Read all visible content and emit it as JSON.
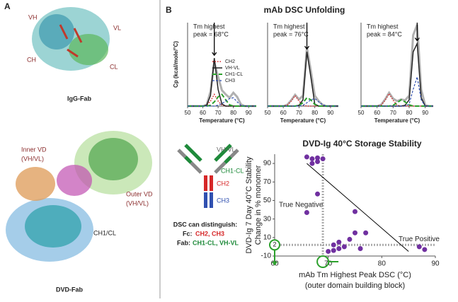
{
  "panel_a": {
    "label": "A",
    "vh": "VH",
    "vl": "VL",
    "ch": "CH",
    "cl": "CL",
    "top_caption": "IgG-Fab",
    "inner_vd": "Inner VD",
    "inner_vd_sub": "(VH/VL)",
    "outer_vd": "Outer VD",
    "outer_vd_sub": "(VH/VL)",
    "constant": "CH1/CL",
    "bottom_caption": "DVD-Fab"
  },
  "panel_b": {
    "label": "B",
    "title": "mAb DSC Unfolding"
  },
  "diagram": {
    "vh_vl": "VH-VL",
    "ch1_cl": "CH1-CL",
    "ch2": "CH2",
    "ch3": "CH3",
    "heading": "DSC can distinguish:",
    "fc": "Fc:",
    "fc_items": "CH2, CH3",
    "fab": "Fab:",
    "fab_items": "CH1-CL, VH-VL"
  },
  "chart_data": [
    {
      "type": "line",
      "ylabel": "Cp (kcal/mole/°C)",
      "xlabel": "Temperature (°C)",
      "annotation": [
        "Tm highest",
        "peak = 68°C"
      ],
      "legend": "right",
      "x": [
        50,
        52.5,
        55,
        57.5,
        60,
        62.5,
        65,
        67.5,
        70,
        72.5,
        75,
        77.5,
        80,
        82.5,
        85,
        87.5,
        90,
        92.5,
        95
      ],
      "xlim": [
        50,
        95
      ],
      "ylim": [
        0,
        200
      ],
      "xticks": [
        50,
        60,
        70,
        80,
        90
      ],
      "series": [
        {
          "color": "#b0b0b0",
          "style": "total",
          "values": [
            0,
            0,
            0,
            0,
            0,
            3,
            35,
            105,
            70,
            38,
            28,
            20,
            32,
            22,
            4,
            0,
            0,
            0,
            0
          ]
        },
        {
          "name": "CH2",
          "color": "#d62728",
          "style": "dotted",
          "values": [
            0,
            0,
            0,
            0,
            0,
            2,
            12,
            28,
            12,
            2,
            0,
            0,
            0,
            0,
            0,
            0,
            0,
            0,
            0
          ]
        },
        {
          "name": "VH-VL",
          "color": "#222222",
          "style": "solid",
          "values": [
            0,
            0,
            0,
            0,
            0,
            2,
            25,
            115,
            40,
            5,
            0,
            0,
            0,
            0,
            0,
            0,
            0,
            0,
            0
          ]
        },
        {
          "name": "CH1-CL",
          "color": "#2ca02c",
          "style": "dashed",
          "values": [
            0,
            0,
            0,
            0,
            0,
            0,
            2,
            10,
            22,
            28,
            15,
            3,
            0,
            0,
            0,
            0,
            0,
            0,
            0
          ]
        },
        {
          "name": "CH3",
          "color": "#3050b0",
          "style": "short",
          "values": [
            0,
            0,
            0,
            0,
            0,
            0,
            0,
            0,
            2,
            6,
            12,
            18,
            20,
            10,
            2,
            0,
            0,
            0,
            0
          ]
        }
      ]
    },
    {
      "type": "line",
      "xlabel": "Temperature (°C)",
      "annotation": [
        "Tm highest",
        "peak = 76°C"
      ],
      "x": [
        50,
        52.5,
        55,
        57.5,
        60,
        62.5,
        65,
        67.5,
        70,
        72.5,
        75,
        77.5,
        80,
        82.5,
        85,
        87.5,
        90,
        92.5,
        95
      ],
      "xlim": [
        50,
        95
      ],
      "ylim": [
        0,
        200
      ],
      "xticks": [
        50,
        60,
        70,
        80,
        90
      ],
      "series": [
        {
          "color": "#b0b0b0",
          "style": "total",
          "values": [
            0,
            0,
            0,
            0,
            0,
            3,
            14,
            27,
            16,
            25,
            140,
            85,
            25,
            12,
            3,
            0,
            0,
            0,
            0
          ]
        },
        {
          "color": "#d62728",
          "style": "dotted",
          "values": [
            0,
            0,
            0,
            0,
            0,
            2,
            12,
            25,
            12,
            2,
            0,
            0,
            0,
            0,
            0,
            0,
            0,
            0,
            0
          ]
        },
        {
          "color": "#222222",
          "style": "solid",
          "values": [
            0,
            0,
            0,
            0,
            0,
            0,
            0,
            0,
            2,
            15,
            130,
            70,
            5,
            0,
            0,
            0,
            0,
            0,
            0
          ]
        },
        {
          "color": "#2ca02c",
          "style": "dashed",
          "values": [
            0,
            0,
            0,
            0,
            0,
            0,
            0,
            0,
            2,
            8,
            20,
            15,
            4,
            0,
            0,
            0,
            0,
            0,
            0
          ]
        },
        {
          "color": "#3050b0",
          "style": "short",
          "values": [
            0,
            0,
            0,
            0,
            0,
            0,
            0,
            0,
            0,
            2,
            8,
            15,
            18,
            10,
            3,
            0,
            0,
            0,
            0
          ]
        }
      ]
    },
    {
      "type": "line",
      "xlabel": "Temperature (°C)",
      "annotation": [
        "Tm highest",
        "peak = 84°C"
      ],
      "x": [
        50,
        52.5,
        55,
        57.5,
        60,
        62.5,
        65,
        67.5,
        70,
        72.5,
        75,
        77.5,
        80,
        82.5,
        85,
        87.5,
        90,
        92.5,
        95
      ],
      "xlim": [
        50,
        95
      ],
      "ylim": [
        0,
        200
      ],
      "xticks": [
        50,
        60,
        70,
        80,
        90
      ],
      "series": [
        {
          "color": "#b0b0b0",
          "style": "total",
          "values": [
            0,
            0,
            0,
            0,
            0,
            3,
            16,
            32,
            18,
            12,
            16,
            14,
            25,
            170,
            195,
            40,
            2,
            0,
            0
          ]
        },
        {
          "color": "#d62728",
          "style": "dotted",
          "values": [
            0,
            0,
            0,
            0,
            0,
            2,
            14,
            30,
            14,
            2,
            0,
            0,
            0,
            0,
            0,
            0,
            0,
            0,
            0
          ]
        },
        {
          "color": "#222222",
          "style": "solid",
          "values": [
            0,
            0,
            0,
            0,
            0,
            0,
            0,
            0,
            0,
            0,
            0,
            2,
            15,
            130,
            150,
            20,
            0,
            0,
            0
          ]
        },
        {
          "color": "#2ca02c",
          "style": "dashed",
          "values": [
            0,
            0,
            0,
            0,
            0,
            0,
            0,
            0,
            2,
            8,
            15,
            10,
            3,
            0,
            0,
            0,
            0,
            0,
            0
          ]
        },
        {
          "color": "#3050b0",
          "style": "short",
          "values": [
            0,
            0,
            0,
            0,
            0,
            0,
            0,
            0,
            0,
            0,
            0,
            0,
            5,
            40,
            70,
            15,
            0,
            0,
            0
          ]
        }
      ]
    },
    {
      "type": "scatter",
      "title": "DVD-Ig 40°C Storage Stability",
      "ylabel": [
        "DVD-Ig 7 Day 40°C Stability",
        "Change in % monomer"
      ],
      "xlabel": [
        "mAb Tm Highest Peak DSC (°C)",
        "(outer domain building block)"
      ],
      "color": "#7030a0",
      "xlim": [
        60,
        90
      ],
      "ylim": [
        -10,
        100
      ],
      "xticks": [
        60,
        70,
        80,
        90
      ],
      "yticks": [
        -10,
        10,
        30,
        50,
        70,
        90
      ],
      "x": [
        66,
        67,
        68,
        68,
        69,
        67,
        66,
        68,
        71,
        72,
        73,
        71,
        72,
        74,
        75,
        75,
        77,
        76,
        87,
        88,
        70
      ],
      "values": [
        97,
        95,
        96,
        92,
        95,
        90,
        37,
        57,
        2,
        -2,
        0,
        -4,
        5,
        8,
        38,
        15,
        15,
        -2,
        0,
        -3,
        -5
      ],
      "threshold_x": 69,
      "threshold_y": 2,
      "trend": {
        "x": [
          66,
          85
        ],
        "y": [
          90,
          -5
        ]
      },
      "true_negative": "True Negative",
      "true_positive": "True Positive",
      "circle_y": "2",
      "circle_x": "70"
    }
  ]
}
